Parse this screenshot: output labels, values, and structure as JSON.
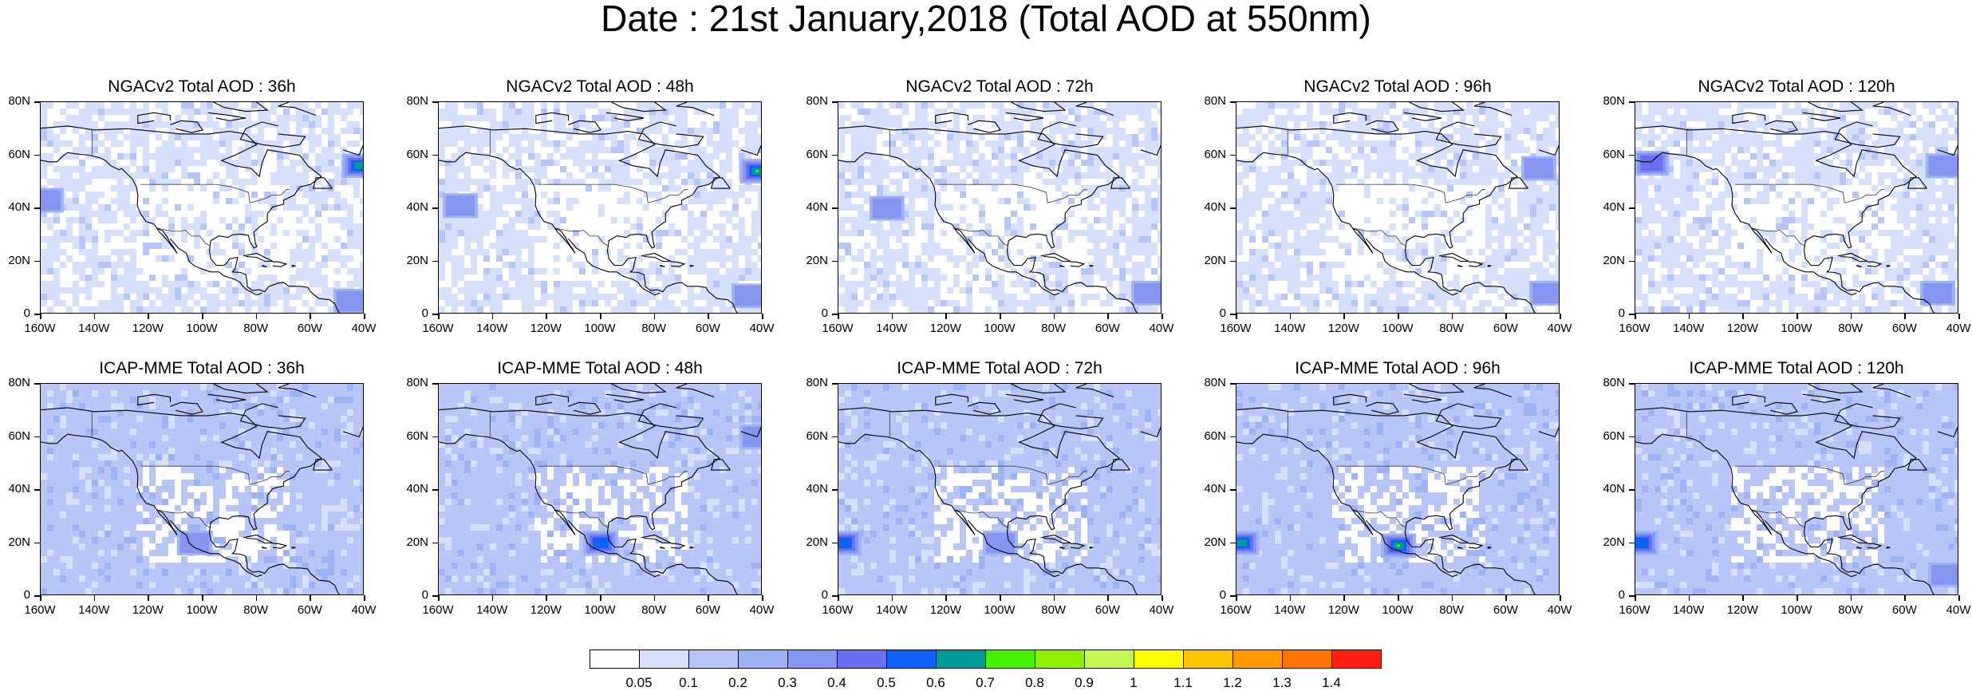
{
  "title": "Date : 21st January,2018 (Total AOD at 550nm)",
  "rows": [
    {
      "model": "NGACv2",
      "panels": [
        {
          "label": "NGACv2 Total AOD : 36h",
          "hour": 36,
          "hotspots": [
            {
              "lon": -42,
              "lat": 56,
              "level": 7
            },
            {
              "lon": -158,
              "lat": 43,
              "level": 4
            },
            {
              "lon": -45,
              "lat": 5,
              "level": 4
            }
          ]
        },
        {
          "label": "NGACv2 Total AOD : 48h",
          "hour": 48,
          "hotspots": [
            {
              "lon": -42,
              "lat": 54,
              "level": 9
            },
            {
              "lon": -152,
              "lat": 41,
              "level": 4
            },
            {
              "lon": -45,
              "lat": 7,
              "level": 4
            }
          ]
        },
        {
          "label": "NGACv2 Total AOD : 72h",
          "hour": 72,
          "hotspots": [
            {
              "lon": -142,
              "lat": 40,
              "level": 4
            },
            {
              "lon": -45,
              "lat": 8,
              "level": 4
            }
          ]
        },
        {
          "label": "NGACv2 Total AOD : 96h",
          "hour": 96,
          "hotspots": [
            {
              "lon": -48,
              "lat": 55,
              "level": 4
            },
            {
              "lon": -45,
              "lat": 8,
              "level": 4
            }
          ]
        },
        {
          "label": "NGACv2 Total AOD : 120h",
          "hour": 120,
          "hotspots": [
            {
              "lon": -154,
              "lat": 57,
              "level": 5
            },
            {
              "lon": -46,
              "lat": 56,
              "level": 4
            },
            {
              "lon": -48,
              "lat": 8,
              "level": 4
            }
          ]
        }
      ]
    },
    {
      "model": "ICAP-MME",
      "panels": [
        {
          "label": "ICAP-MME Total AOD : 36h",
          "hour": 36,
          "hotspots": [
            {
              "lon": -103,
              "lat": 20,
              "level": 4
            }
          ]
        },
        {
          "label": "ICAP-MME Total AOD : 48h",
          "hour": 48,
          "hotspots": [
            {
              "lon": -100,
              "lat": 20,
              "level": 6
            },
            {
              "lon": -42,
              "lat": 60,
              "level": 4
            }
          ]
        },
        {
          "label": "ICAP-MME Total AOD : 72h",
          "hour": 72,
          "hotspots": [
            {
              "lon": -158,
              "lat": 20,
              "level": 6
            },
            {
              "lon": -100,
              "lat": 20,
              "level": 4
            }
          ]
        },
        {
          "label": "ICAP-MME Total AOD : 96h",
          "hour": 96,
          "hotspots": [
            {
              "lon": -158,
              "lat": 20,
              "level": 7
            },
            {
              "lon": -100,
              "lat": 19,
              "level": 9
            }
          ]
        },
        {
          "label": "ICAP-MME Total AOD : 120h",
          "hour": 120,
          "hotspots": [
            {
              "lon": -158,
              "lat": 20,
              "level": 6
            },
            {
              "lon": -45,
              "lat": 8,
              "level": 4
            }
          ]
        }
      ]
    }
  ],
  "axes": {
    "lon_ticks": [
      "160W",
      "140W",
      "120W",
      "100W",
      "80W",
      "60W",
      "40W"
    ],
    "lat_ticks": [
      "80N",
      "60N",
      "40N",
      "20N",
      "0"
    ],
    "lon_range": [
      -160,
      -40
    ],
    "lat_range": [
      0,
      80
    ]
  },
  "colorbar": {
    "labels": [
      "0.05",
      "0.1",
      "0.2",
      "0.3",
      "0.4",
      "0.5",
      "0.6",
      "0.7",
      "0.8",
      "0.9",
      "1",
      "1.1",
      "1.2",
      "1.3",
      "1.4"
    ],
    "colors": [
      "#ffffff",
      "#d6e0fa",
      "#b7c6f6",
      "#9fb2f3",
      "#8595f0",
      "#6a6ef0",
      "#0f62f5",
      "#009b96",
      "#46f200",
      "#91ef00",
      "#c4f652",
      "#fefc00",
      "#fdc400",
      "#ff9b00",
      "#ff7300",
      "#ff1e12"
    ]
  }
}
